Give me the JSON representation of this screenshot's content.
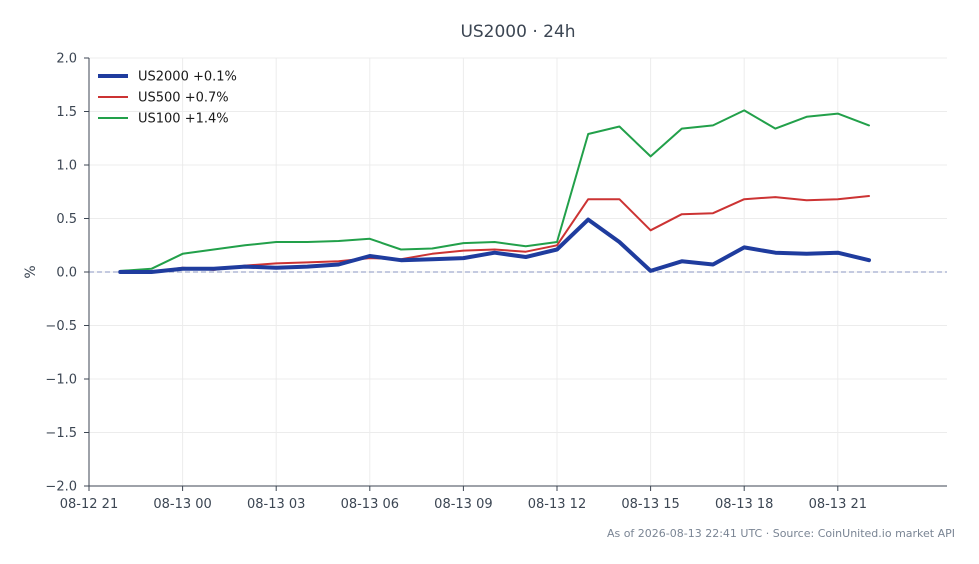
{
  "chart_data": {
    "type": "line",
    "title": "US2000 · 24h",
    "xlabel": "",
    "ylabel": "%",
    "ylim": [
      -2.0,
      2.0
    ],
    "xlim_hours": [
      -1,
      26.5
    ],
    "x_ticks": [
      {
        "hour": -1,
        "label": "08-12 21"
      },
      {
        "hour": 2,
        "label": "08-13 00"
      },
      {
        "hour": 5,
        "label": "08-13 03"
      },
      {
        "hour": 8,
        "label": "08-13 06"
      },
      {
        "hour": 11,
        "label": "08-13 09"
      },
      {
        "hour": 14,
        "label": "08-13 12"
      },
      {
        "hour": 17,
        "label": "08-13 15"
      },
      {
        "hour": 20,
        "label": "08-13 18"
      },
      {
        "hour": 23,
        "label": "08-13 21"
      }
    ],
    "y_ticks": [
      {
        "value": 2.0,
        "label": "2.0"
      },
      {
        "value": 1.5,
        "label": "1.5"
      },
      {
        "value": 1.0,
        "label": "1.0"
      },
      {
        "value": 0.5,
        "label": "0.5"
      },
      {
        "value": 0.0,
        "label": "0.0"
      },
      {
        "value": -0.5,
        "label": "−0.5"
      },
      {
        "value": -1.0,
        "label": "−1.0"
      },
      {
        "value": -1.5,
        "label": "−1.5"
      },
      {
        "value": -2.0,
        "label": "−2.0"
      }
    ],
    "x_hours": [
      0,
      1,
      2,
      3,
      4,
      5,
      6,
      7,
      8,
      9,
      10,
      11,
      12,
      13,
      14,
      15,
      16,
      17,
      18,
      19,
      20,
      21,
      22,
      23,
      24
    ],
    "series": [
      {
        "name": "US2000 +0.1%",
        "color": "#1f3c9e",
        "width": 4,
        "values": [
          0.0,
          0.0,
          0.03,
          0.03,
          0.05,
          0.04,
          0.05,
          0.07,
          0.15,
          0.11,
          0.12,
          0.13,
          0.18,
          0.14,
          0.21,
          0.49,
          0.28,
          0.01,
          0.1,
          0.07,
          0.23,
          0.18,
          0.17,
          0.18,
          0.11
        ]
      },
      {
        "name": "US500 +0.7%",
        "color": "#cc3333",
        "width": 2,
        "values": [
          0.0,
          0.0,
          0.04,
          0.02,
          0.06,
          0.08,
          0.09,
          0.1,
          0.13,
          0.12,
          0.17,
          0.2,
          0.21,
          0.19,
          0.25,
          0.68,
          0.68,
          0.39,
          0.54,
          0.55,
          0.68,
          0.7,
          0.67,
          0.68,
          0.71
        ]
      },
      {
        "name": "US100 +1.4%",
        "color": "#22a04a",
        "width": 2,
        "values": [
          0.01,
          0.03,
          0.17,
          0.21,
          0.25,
          0.28,
          0.28,
          0.29,
          0.31,
          0.21,
          0.22,
          0.27,
          0.28,
          0.24,
          0.28,
          1.29,
          1.36,
          1.08,
          1.34,
          1.37,
          1.51,
          1.34,
          1.45,
          1.48,
          1.37
        ]
      }
    ],
    "reference_line": {
      "value": 0.0,
      "style": "dashed",
      "color": "#8a96c0"
    },
    "grid": true,
    "legend_position": "top-left"
  },
  "footer": "As of 2026-08-13 22:41 UTC · Source: CoinUnited.io market API"
}
